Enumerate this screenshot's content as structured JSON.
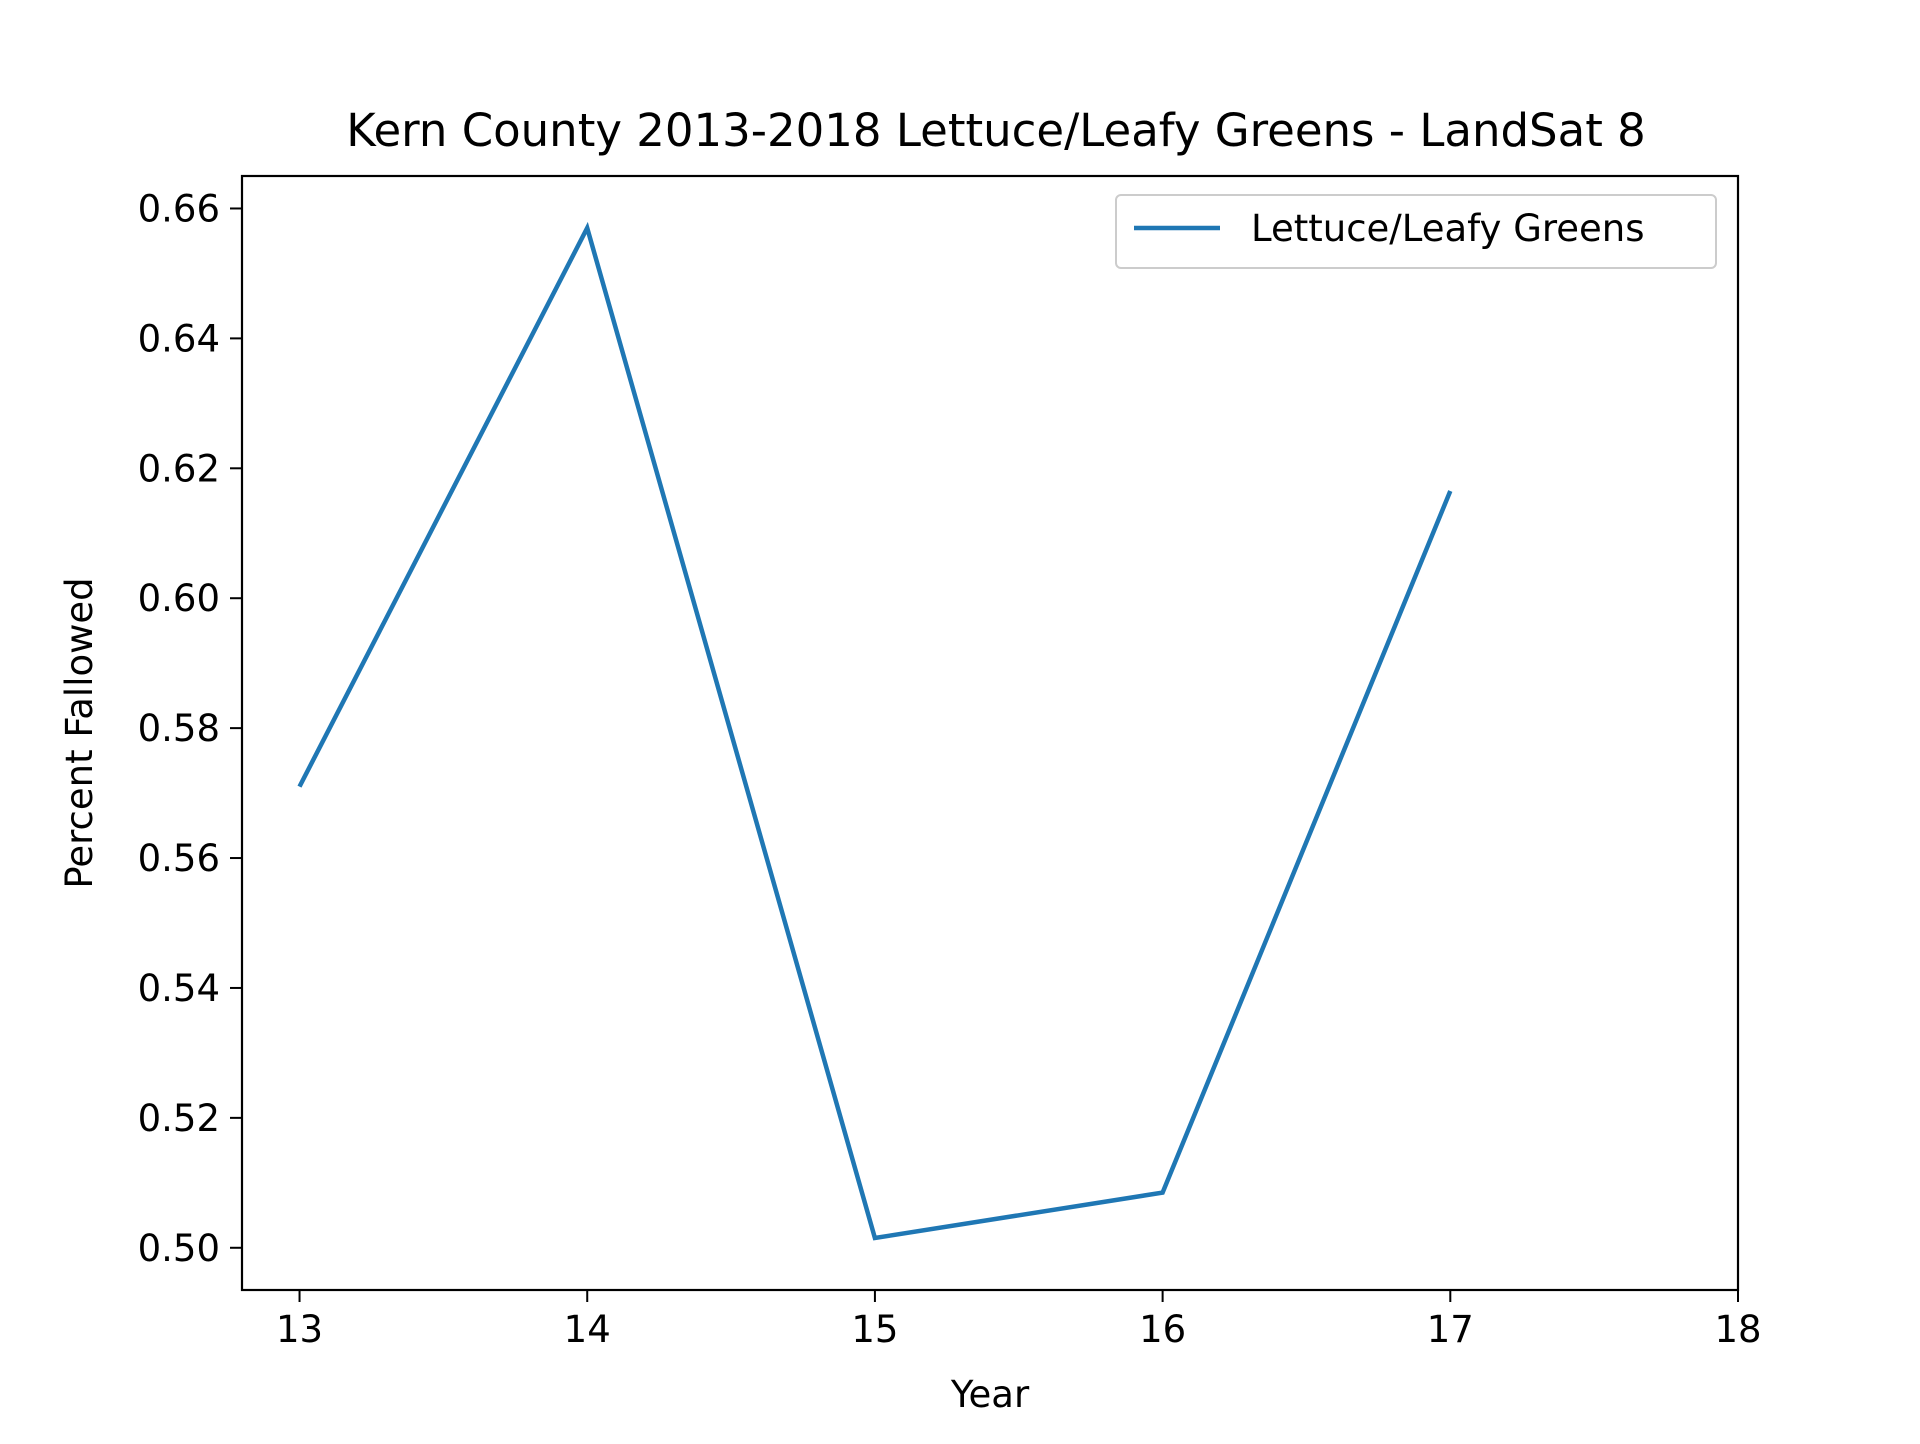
{
  "chart_data": {
    "type": "line",
    "title": "Kern County 2013-2018 Lettuce/Leafy Greens - LandSat 8",
    "xlabel": "Year",
    "ylabel": "Percent Fallowed",
    "xlim": [
      12.8,
      18.0
    ],
    "ylim": [
      0.4935,
      0.665
    ],
    "x_ticks": [
      13,
      14,
      15,
      16,
      17,
      18
    ],
    "x_tick_labels": [
      "13",
      "14",
      "15",
      "16",
      "17",
      "18"
    ],
    "y_ticks": [
      0.5,
      0.52,
      0.54,
      0.56,
      0.58,
      0.6,
      0.62,
      0.64,
      0.66
    ],
    "y_tick_labels": [
      "0.50",
      "0.52",
      "0.54",
      "0.56",
      "0.58",
      "0.60",
      "0.62",
      "0.64",
      "0.66"
    ],
    "grid": false,
    "legend_position": "top-right",
    "series": [
      {
        "name": "Lettuce/Leafy Greens",
        "color": "#1f77b4",
        "x": [
          13,
          14,
          15,
          16,
          17
        ],
        "y": [
          0.571,
          0.657,
          0.5015,
          0.5085,
          0.6165
        ]
      }
    ]
  }
}
